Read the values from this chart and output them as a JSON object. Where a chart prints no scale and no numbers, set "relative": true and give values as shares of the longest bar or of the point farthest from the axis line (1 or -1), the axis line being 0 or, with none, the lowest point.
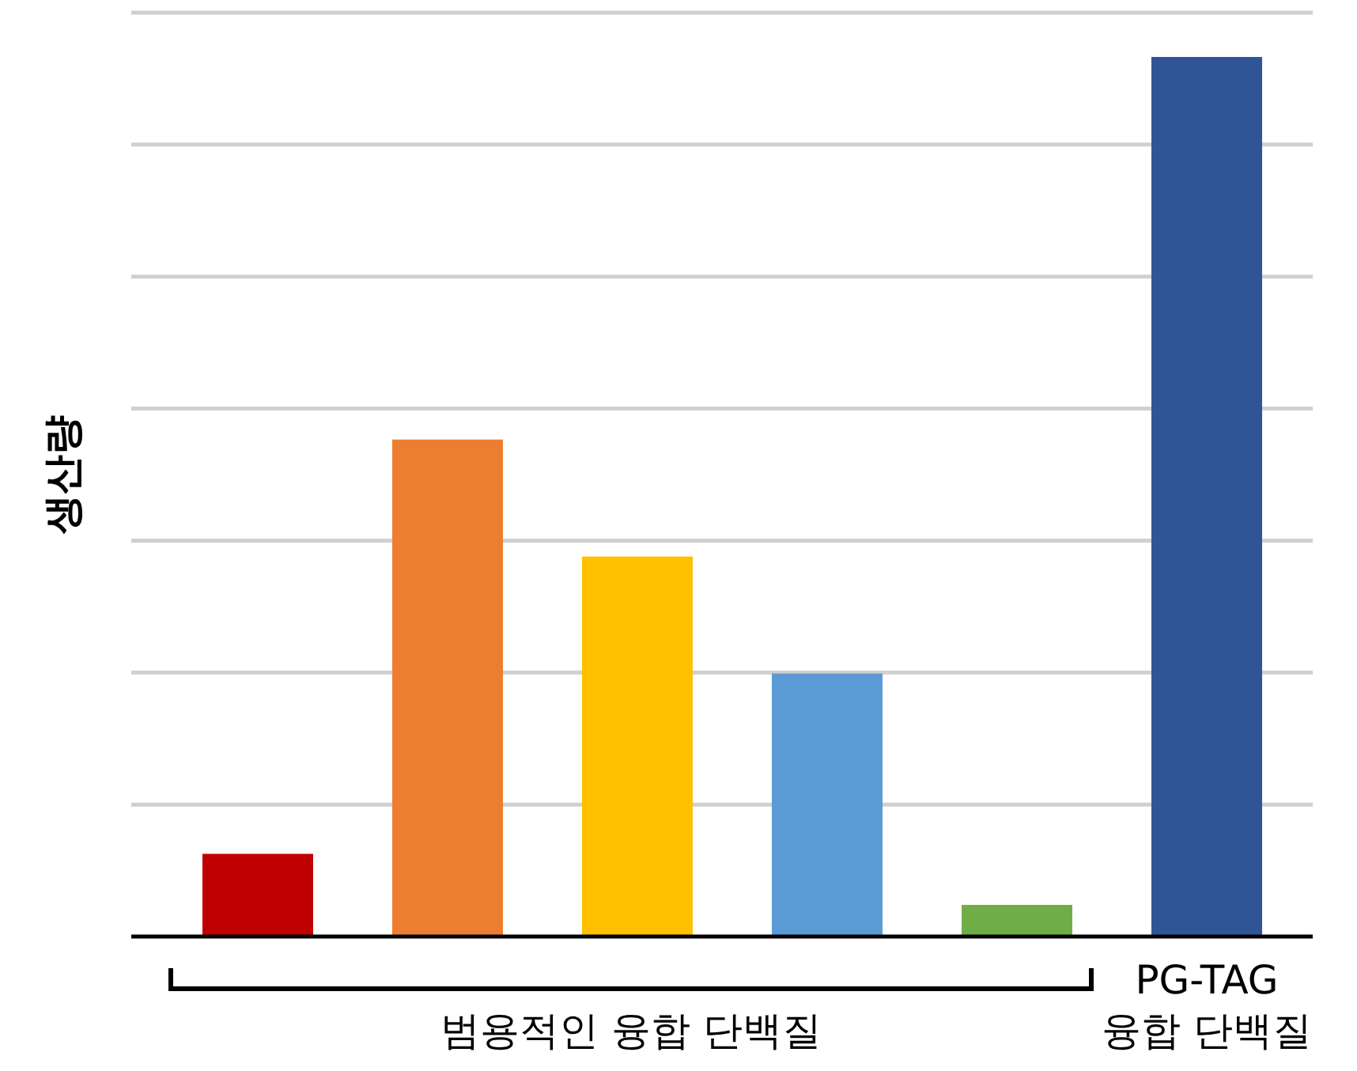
{
  "chart_data": {
    "type": "bar",
    "relative": true,
    "ylabel": "생산량",
    "grid": "y",
    "categories": [
      null,
      null,
      null,
      null,
      null,
      null
    ],
    "values": [
      0.094,
      0.565,
      0.432,
      0.299,
      0.036,
      1
    ],
    "colors": [
      "#c00000",
      "#ed7d31",
      "#ffc000",
      "#5b9bd5",
      "#70ad47",
      "#2f5597"
    ],
    "annotations": [
      "범용적인 융합 단백질",
      "PG-TAG 융합 단백질"
    ]
  }
}
